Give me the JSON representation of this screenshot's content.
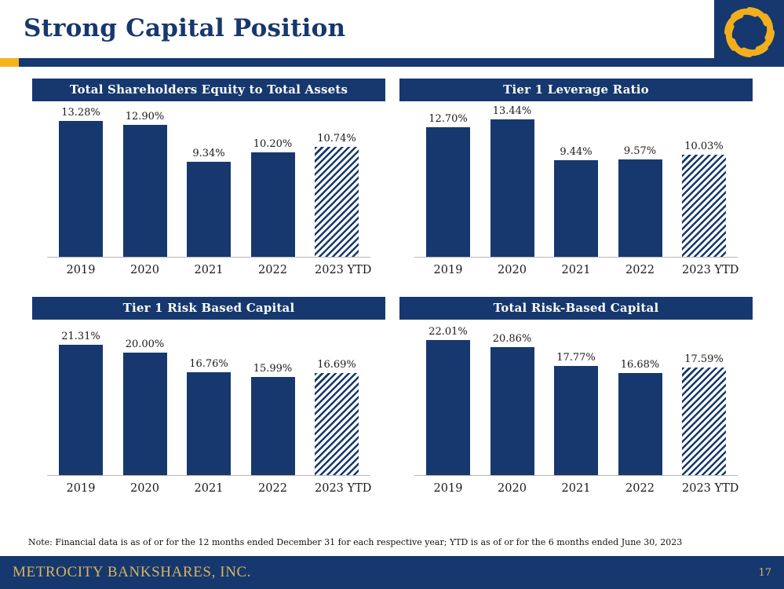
{
  "slide": {
    "title": "Strong Capital Position",
    "note": "Note: Financial data is as of or for the 12 months ended December 31 for each respective year; YTD is as of or for the 6 months ended June 30, 2023",
    "footer": {
      "company": "METROCITY BANKSHARES, INC.",
      "page_number": "17"
    },
    "logo_icon": "metrocity-gold-swirl"
  },
  "colors": {
    "navy": "#16386E",
    "accent_gold": "#F5B41C",
    "footer_text_gold": "#D8B45E",
    "axis_line_gray": "#B8B8B8",
    "label_text": "#1A1A1A"
  },
  "chart_data": [
    {
      "type": "bar",
      "title": "Total Shareholders Equity to Total Assets",
      "categories": [
        "2019",
        "2020",
        "2021",
        "2022",
        "2023 YTD"
      ],
      "values": [
        13.28,
        12.9,
        9.34,
        10.2,
        10.74
      ],
      "labels": [
        "13.28%",
        "12.90%",
        "9.34%",
        "10.20%",
        "10.74%"
      ],
      "ylim": [
        0,
        15
      ],
      "bar_color": "#16386E",
      "last_bar_style": "diagonal-hatch",
      "grid": false,
      "legend": "none",
      "xlabel": "",
      "ylabel": ""
    },
    {
      "type": "bar",
      "title": "Tier 1 Leverage Ratio",
      "categories": [
        "2019",
        "2020",
        "2021",
        "2022",
        "2023 YTD"
      ],
      "values": [
        12.7,
        13.44,
        9.44,
        9.57,
        10.03
      ],
      "labels": [
        "12.70%",
        "13.44%",
        "9.44%",
        "9.57%",
        "10.03%"
      ],
      "ylim": [
        0,
        15
      ],
      "bar_color": "#16386E",
      "last_bar_style": "diagonal-hatch",
      "grid": false,
      "legend": "none",
      "xlabel": "",
      "ylabel": ""
    },
    {
      "type": "bar",
      "title": "Tier 1 Risk Based Capital",
      "categories": [
        "2019",
        "2020",
        "2021",
        "2022",
        "2023 YTD"
      ],
      "values": [
        21.31,
        20.0,
        16.76,
        15.99,
        16.69
      ],
      "labels": [
        "21.31%",
        "20.00%",
        "16.76%",
        "15.99%",
        "16.69%"
      ],
      "ylim": [
        0,
        25
      ],
      "bar_color": "#16386E",
      "last_bar_style": "diagonal-hatch",
      "grid": false,
      "legend": "none",
      "xlabel": "",
      "ylabel": ""
    },
    {
      "type": "bar",
      "title": "Total Risk-Based Capital",
      "categories": [
        "2019",
        "2020",
        "2021",
        "2022",
        "2023 YTD"
      ],
      "values": [
        22.01,
        20.86,
        17.77,
        16.68,
        17.59
      ],
      "labels": [
        "22.01%",
        "20.86%",
        "17.77%",
        "16.68%",
        "17.59%"
      ],
      "ylim": [
        0,
        25
      ],
      "bar_color": "#16386E",
      "last_bar_style": "diagonal-hatch",
      "grid": false,
      "legend": "none",
      "xlabel": "",
      "ylabel": ""
    }
  ]
}
